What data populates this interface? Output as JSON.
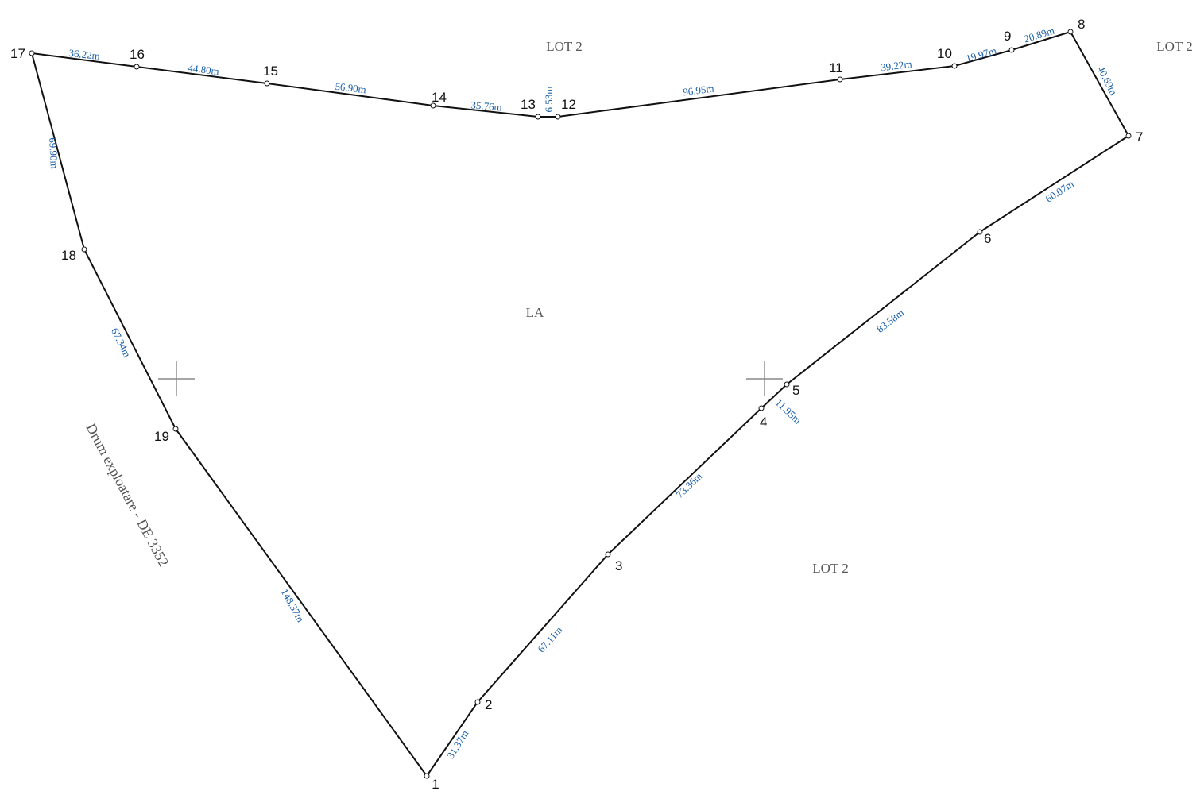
{
  "colors": {
    "boundary": "#111111",
    "measurement": "#1a5fa8",
    "label": "#111111",
    "region": "#555555"
  },
  "vertices": [
    "1",
    "2",
    "3",
    "4",
    "5",
    "6",
    "7",
    "8",
    "9",
    "10",
    "11",
    "12",
    "13",
    "14",
    "15",
    "16",
    "17",
    "18",
    "19"
  ],
  "edges": [
    {
      "from": "17",
      "to": "16",
      "label": "36.22m"
    },
    {
      "from": "16",
      "to": "15",
      "label": "44.80m"
    },
    {
      "from": "15",
      "to": "14",
      "label": "56.90m"
    },
    {
      "from": "14",
      "to": "13",
      "label": "35.76m"
    },
    {
      "from": "13",
      "to": "12",
      "label": "6.53m"
    },
    {
      "from": "12",
      "to": "11",
      "label": "96.95m"
    },
    {
      "from": "11",
      "to": "10",
      "label": "39.22m"
    },
    {
      "from": "10",
      "to": "9",
      "label": "19.97m"
    },
    {
      "from": "9",
      "to": "8",
      "label": "20.89m"
    },
    {
      "from": "8",
      "to": "7",
      "label": "40.69m"
    },
    {
      "from": "7",
      "to": "6",
      "label": "60.07m"
    },
    {
      "from": "6",
      "to": "5",
      "label": "83.58m"
    },
    {
      "from": "5",
      "to": "4",
      "label": "11.95m"
    },
    {
      "from": "4",
      "to": "3",
      "label": "73.36m"
    },
    {
      "from": "3",
      "to": "2",
      "label": "67.11m"
    },
    {
      "from": "2",
      "to": "1",
      "label": "31.37m"
    },
    {
      "from": "1",
      "to": "19",
      "label": "148.37m"
    },
    {
      "from": "19",
      "to": "18",
      "label": "67.34m"
    },
    {
      "from": "18",
      "to": "17",
      "label": "69.90m"
    }
  ],
  "regions": {
    "lot_top": "LOT 2",
    "lot_top_right": "LOT 2",
    "lot_bottom": "LOT 2",
    "center": "LA"
  },
  "road_label": "Drum exploatare - DE 3352"
}
